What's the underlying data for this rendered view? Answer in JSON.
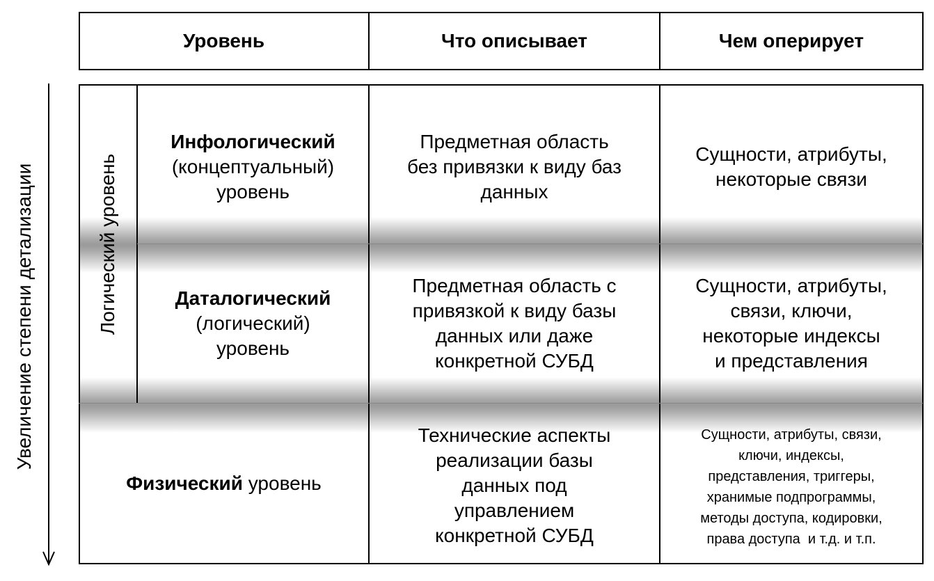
{
  "header": {
    "col1": "Уровень",
    "col2": "Что описывает",
    "col3": "Чем оперирует"
  },
  "axis_label": "Увеличение степени детализации",
  "group_label": "Логический уровень",
  "rows": [
    {
      "level_bold": "Инфологический",
      "level_rest": [
        "(концептуальный)",
        "уровень"
      ],
      "describes": [
        "Предметная область",
        "без привязки к виду баз",
        "данных"
      ],
      "operates": [
        "Сущности, атрибуты,",
        "некоторые связи"
      ]
    },
    {
      "level_bold": "Даталогический",
      "level_rest": [
        "(логический)",
        "уровень"
      ],
      "describes": [
        "Предметная область с",
        "привязкой к виду базы",
        "данных или даже",
        "конкретной СУБД"
      ],
      "operates": [
        "Сущности, атрибуты,",
        "связи, ключи,",
        "некоторые индексы",
        "и представления"
      ]
    },
    {
      "level_bold": "Физический",
      "level_tail": " уровень",
      "describes": [
        "Технические аспекты",
        "реализации базы",
        "данных под",
        "управлением",
        "конкретной СУБД"
      ],
      "operates": [
        "Сущности, атрибуты, связи,",
        "ключи, индексы,",
        "представления, триггеры,",
        "хранимые подпрограммы,",
        "методы доступа, кодировки,",
        "права доступа  и т.д. и т.п."
      ]
    }
  ]
}
